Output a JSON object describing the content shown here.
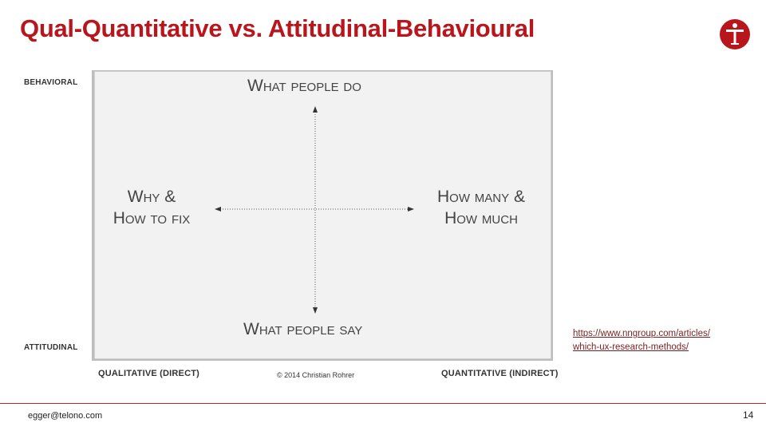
{
  "slide": {
    "title": "Qual-Quantitative vs. Attitudinal-Behavioural",
    "page_number": "14"
  },
  "diagram": {
    "y_top_label": "BEHAVIORAL",
    "y_bottom_label": "ATTITUDINAL",
    "x_left_label": "QUALITATIVE (DIRECT)",
    "x_right_label": "QUANTITATIVE (INDIRECT)",
    "top": "What people do",
    "bottom": "What people say",
    "left_line1": "Why &",
    "left_line2": "How to fix",
    "right_line1": "How many &",
    "right_line2": "How much",
    "copyright": "© 2014 Christian Rohrer"
  },
  "source_link": {
    "line1": "https://www.nngroup.com/articles/",
    "line2": "which-ux-research-methods/"
  },
  "footer": {
    "email": "egger@telono.com"
  },
  "colors": {
    "accent": "#b8151c",
    "matrix_bg": "#f2f2f2"
  },
  "icons": {
    "logo": "telono-logo-icon"
  }
}
